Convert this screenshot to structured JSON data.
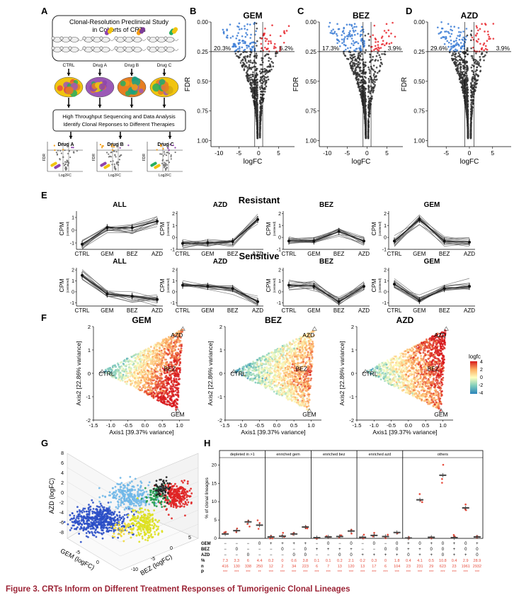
{
  "panel_letters": [
    "A",
    "B",
    "C",
    "D",
    "E",
    "F",
    "G",
    "H"
  ],
  "panelA": {
    "title1": "Clonal-Resolution Preclinical Study",
    "title2": "in Cohorts of CRTs",
    "cohorts": [
      "CTRL",
      "Drug A",
      "Drug B",
      "Drug C"
    ],
    "analysis1": "High Throughput Sequencing and Data Analysis",
    "analysis2": "Identify Clonal Reponses to Different Therapies",
    "mini_titles": [
      "Drug A",
      "Drug B",
      "Drug C"
    ],
    "mini_ylabel": "FDR",
    "mini_xlabel": "Log2FC"
  },
  "volcano": [
    {
      "title": "GEM",
      "left_pct": "20.3%",
      "right_pct": "6.2%",
      "xticks": [
        "-10",
        "-5",
        "0",
        "5"
      ],
      "yticks": [
        "0.00",
        "0.25",
        "0.50",
        "0.75",
        "1.00"
      ],
      "ylabel": "FDR",
      "xlabel": "logFC"
    },
    {
      "title": "BEZ",
      "left_pct": "17.3%",
      "right_pct": "3.9%",
      "xticks": [
        "-10",
        "-5",
        "0",
        "5"
      ],
      "yticks": [
        "0.00",
        "0.25",
        "0.50",
        "0.75",
        "1.00"
      ],
      "ylabel": "FDR",
      "xlabel": "logFC"
    },
    {
      "title": "AZD",
      "left_pct": "29.6%",
      "right_pct": "3.9%",
      "xticks": [
        "-5",
        "0",
        "5"
      ],
      "yticks": [
        "0.00",
        "0.25",
        "0.50",
        "0.75",
        "1.00"
      ],
      "ylabel": "FDR",
      "xlabel": "logFC"
    }
  ],
  "panelE": {
    "resistant_label": "Resistant",
    "sensitive_label": "Sensitive",
    "resistant_titles": [
      "ALL",
      "AZD",
      "BEZ",
      "GEM"
    ],
    "sensitive_titles": [
      "ALL",
      "AZD",
      "BEZ",
      "GEM"
    ],
    "xcats": [
      "CTRL",
      "GEM",
      "BEZ",
      "AZD"
    ],
    "ylabel": "CPM",
    "ylabel_sub": "(centered)"
  },
  "panelF": {
    "titles": [
      "GEM",
      "BEZ",
      "AZD"
    ],
    "xlabel": "Axis1 [39.37% variance]",
    "ylabel": "Axis2 [22.86% variance]",
    "xticks": [
      "-1.5",
      "-1.0",
      "-0.5",
      "0.0",
      "0.5",
      "1.0"
    ],
    "yticks": [
      "2",
      "1",
      "0",
      "-1",
      "-2"
    ],
    "vertex_labels": [
      "CTRL",
      "AZD",
      "BEZ",
      "GEM"
    ],
    "legend_title": "logfc",
    "legend_ticks": [
      "4",
      "2",
      "0",
      "-2",
      "-4"
    ]
  },
  "panelG": {
    "zlabel": "AZD (logFC)",
    "xlabel": "GEM (logFC)",
    "ylabel": "BEZ (logFC)",
    "zticks": [
      "8",
      "6",
      "4",
      "2",
      "0",
      "-2",
      "-4",
      "-6",
      "-8"
    ],
    "xticks": [
      "-5",
      "0"
    ],
    "yticks": [
      "-10",
      "-5",
      "0",
      "5"
    ]
  },
  "panelH": {
    "ylabel": "% of clonal lineages",
    "yticks": [
      "0",
      "5",
      "10",
      "15",
      "20"
    ],
    "groups": [
      "depleted in >1",
      "enriched gem",
      "enriched bez",
      "enriched azd",
      "others"
    ],
    "row_labels": [
      "GEM",
      "BEZ",
      "AZD",
      "%",
      "n",
      "P"
    ]
  },
  "chart_data": [
    {
      "type": "scatter",
      "title": "GEM",
      "xlabel": "logFC",
      "ylabel": "FDR",
      "xlim": [
        -12,
        9
      ],
      "ylim": [
        1.05,
        0
      ],
      "fdr_threshold": 0.25,
      "annotations": [
        "20.3%",
        "6.2%"
      ]
    },
    {
      "type": "scatter",
      "title": "BEZ",
      "xlabel": "logFC",
      "ylabel": "FDR",
      "xlim": [
        -12,
        9
      ],
      "ylim": [
        1.05,
        0
      ],
      "fdr_threshold": 0.25,
      "annotations": [
        "17.3%",
        "3.9%"
      ]
    },
    {
      "type": "scatter",
      "title": "AZD",
      "xlabel": "logFC",
      "ylabel": "FDR",
      "xlim": [
        -9,
        9
      ],
      "ylim": [
        1.05,
        0
      ],
      "fdr_threshold": 0.25,
      "annotations": [
        "29.6%",
        "3.9%"
      ]
    },
    {
      "type": "line",
      "group": "Resistant",
      "title": "ALL",
      "categories": [
        "CTRL",
        "GEM",
        "BEZ",
        "AZD"
      ],
      "ylim": [
        -1.5,
        1.5
      ],
      "mean": [
        -1.1,
        0.2,
        0.2,
        0.7
      ]
    },
    {
      "type": "line",
      "group": "Resistant",
      "title": "AZD",
      "categories": [
        "CTRL",
        "GEM",
        "BEZ",
        "AZD"
      ],
      "ylim": [
        -1,
        2.2
      ],
      "mean": [
        -0.5,
        -0.45,
        -0.35,
        1.5
      ]
    },
    {
      "type": "line",
      "group": "Resistant",
      "title": "BEZ",
      "categories": [
        "CTRL",
        "GEM",
        "BEZ",
        "AZD"
      ],
      "ylim": [
        -1,
        2.2
      ],
      "mean": [
        -0.3,
        -0.3,
        0.5,
        -0.3
      ]
    },
    {
      "type": "line",
      "group": "Resistant",
      "title": "GEM",
      "categories": [
        "CTRL",
        "GEM",
        "BEZ",
        "AZD"
      ],
      "ylim": [
        -1,
        2.2
      ],
      "mean": [
        -0.3,
        1.5,
        -0.3,
        -0.4
      ]
    },
    {
      "type": "line",
      "group": "Sensitive",
      "title": "ALL",
      "categories": [
        "CTRL",
        "GEM",
        "BEZ",
        "AZD"
      ],
      "ylim": [
        -1.3,
        2.2
      ],
      "mean": [
        1.5,
        -0.2,
        -0.4,
        -0.7
      ]
    },
    {
      "type": "line",
      "group": "Sensitive",
      "title": "AZD",
      "categories": [
        "CTRL",
        "GEM",
        "BEZ",
        "AZD"
      ],
      "ylim": [
        -1.3,
        2.2
      ],
      "mean": [
        0.6,
        0.5,
        0.3,
        -0.9
      ]
    },
    {
      "type": "line",
      "group": "Sensitive",
      "title": "BEZ",
      "categories": [
        "CTRL",
        "GEM",
        "BEZ",
        "AZD"
      ],
      "ylim": [
        -1.3,
        2.2
      ],
      "mean": [
        0.6,
        0.5,
        -0.9,
        0.5
      ]
    },
    {
      "type": "line",
      "group": "Sensitive",
      "title": "GEM",
      "categories": [
        "CTRL",
        "GEM",
        "BEZ",
        "AZD"
      ],
      "ylim": [
        -1.3,
        2.2
      ],
      "mean": [
        0.7,
        -0.8,
        0.3,
        0.5
      ]
    },
    {
      "type": "scatter",
      "title": "GEM",
      "xlabel": "Axis1 [39.37% variance]",
      "ylabel": "Axis2 [22.86% variance]",
      "xlim": [
        -1.5,
        1.3
      ],
      "ylim": [
        -2,
        2
      ],
      "vertices": {
        "CTRL": [
          -1.25,
          0.07
        ],
        "AZD": [
          1.1,
          1.9
        ],
        "GEM": [
          0.95,
          -1.6
        ]
      }
    },
    {
      "type": "scatter",
      "title": "BEZ",
      "xlabel": "Axis1 [39.37% variance]",
      "ylabel": "Axis2 [22.86% variance]",
      "xlim": [
        -1.5,
        1.3
      ],
      "ylim": [
        -2,
        2
      ],
      "vertices": {
        "CTRL": [
          -1.25,
          0.07
        ],
        "AZD": [
          1.1,
          1.9
        ],
        "GEM": [
          0.95,
          -1.6
        ]
      }
    },
    {
      "type": "scatter",
      "title": "AZD",
      "xlabel": "Axis1 [39.37% variance]",
      "ylabel": "Axis2 [22.86% variance]",
      "xlim": [
        -1.5,
        1.3
      ],
      "ylim": [
        -2,
        2
      ],
      "vertices": {
        "CTRL": [
          -1.25,
          0.07
        ],
        "AZD": [
          1.1,
          1.9
        ],
        "GEM": [
          0.95,
          -1.6
        ]
      }
    },
    {
      "type": "scatter",
      "title": "",
      "xlabel": "GEM (logFC)",
      "ylabel": "BEZ (logFC)",
      "zlabel": "AZD (logFC)"
    },
    {
      "type": "scatter",
      "title": "",
      "ylabel": "% of clonal lineages",
      "ylim": [
        0,
        22
      ],
      "groups": [
        {
          "name": "depleted in >1",
          "signs": [
            [
              "−",
              "−",
              "−"
            ],
            [
              "−",
              "0",
              "−"
            ],
            [
              "−",
              "−",
              "0"
            ],
            [
              "0",
              "−",
              "−"
            ]
          ],
          "means": [
            1.2,
            2.1,
            4.5,
            3.6
          ],
          "pct": [
            "7.3",
            "3.3",
            "6",
            "4.4"
          ],
          "n": [
            "416",
            "130",
            "338",
            "250"
          ],
          "p": [
            "***",
            "***",
            "***",
            "**"
          ]
        },
        {
          "name": "enriched gem",
          "signs": [
            [
              "+",
              "−",
              "−"
            ],
            [
              "+",
              "0",
              "−"
            ],
            [
              "+",
              "−",
              "0"
            ],
            [
              "+",
              "0",
              "0"
            ]
          ],
          "means": [
            0.4,
            0.6,
            1.2,
            3.1
          ],
          "pct": [
            "0.2",
            "0",
            "0.6",
            "3.8"
          ],
          "n": [
            "12",
            "2",
            "34",
            "223"
          ],
          "p": [
            "***",
            "***",
            "***",
            "***"
          ]
        },
        {
          "name": "enriched bez",
          "signs": [
            [
              "−",
              "+",
              "−"
            ],
            [
              "0",
              "+",
              "−"
            ],
            [
              "−",
              "+",
              "0"
            ],
            [
              "0",
              "+",
              "0"
            ]
          ],
          "means": [
            0.2,
            0.4,
            0.5,
            2.0
          ],
          "pct": [
            "0.1",
            "0.1",
            "0.2",
            "2.1"
          ],
          "n": [
            "6",
            "7",
            "13",
            "120"
          ],
          "p": [
            "***",
            "***",
            "***",
            "***"
          ]
        },
        {
          "name": "enriched azd",
          "signs": [
            [
              "−",
              "−",
              "+"
            ],
            [
              "0",
              "−",
              "+"
            ],
            [
              "−",
              "0",
              "+"
            ],
            [
              "0",
              "0",
              "+"
            ]
          ],
          "means": [
            0.3,
            0.8,
            0.5,
            1.6
          ],
          "pct": [
            "0.2",
            "0.3",
            "0",
            "1.8"
          ],
          "n": [
            "13",
            "17",
            "6",
            "104"
          ],
          "p": [
            "***",
            "***",
            "***",
            "***"
          ]
        },
        {
          "name": "others",
          "signs": [
            [
              "+",
              "+",
              "0"
            ],
            [
              "0",
              "+",
              "+"
            ],
            [
              "+",
              "0",
              "+"
            ],
            [
              "0",
              "0",
              "0"
            ],
            [
              "+",
              "+",
              "+"
            ],
            [
              "0",
              "0",
              "+"
            ],
            [
              "+",
              "0",
              "0"
            ]
          ],
          "means": [
            0.1,
            10.5,
            0.3,
            17.2,
            0.2,
            8.3,
            0.4
          ],
          "pct": [
            "0.4",
            "4.1",
            "0.5",
            "10.8",
            "0.4",
            "2.9",
            "28.9"
          ],
          "n": [
            "23",
            "231",
            "29",
            "623",
            "23",
            "1961",
            "2932"
          ],
          "p": [
            "***",
            "***",
            "***",
            "***",
            "***",
            "***",
            "***"
          ]
        }
      ]
    }
  ],
  "caption": "Figure 3.  CRTs Inform on Different Treatment Responses of Tumorigenic Clonal Lineages"
}
